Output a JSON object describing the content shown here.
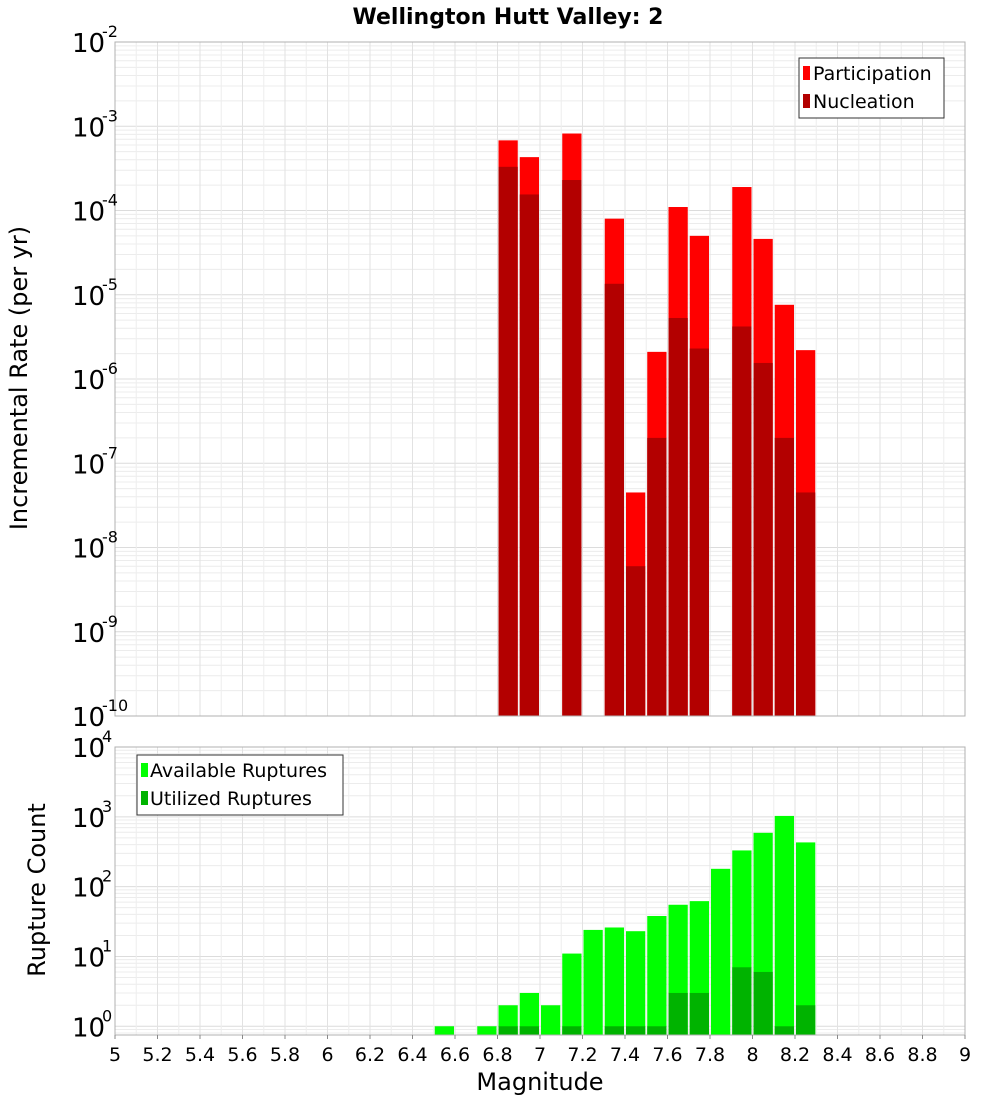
{
  "title": "Wellington Hutt Valley: 2",
  "chart_data": [
    {
      "type": "bar",
      "ylabel": "Incremental Rate (per yr)",
      "yscale": "log",
      "ylim": [
        1e-10,
        0.01
      ],
      "y_tick_exponents": [
        "-10",
        "-9",
        "-8",
        "-7",
        "-6",
        "-5",
        "-4",
        "-3",
        "-2"
      ],
      "y_tick_base": "10",
      "grid": true,
      "legend_position": "top-right",
      "colors": {
        "Participation": "#ff0000",
        "Nucleation": "#b30000"
      },
      "x": [
        6.85,
        6.95,
        7.15,
        7.35,
        7.45,
        7.55,
        7.65,
        7.75,
        7.95,
        8.05,
        8.15,
        8.25
      ],
      "series": [
        {
          "name": "Participation",
          "values": [
            0.00068,
            0.00043,
            0.00082,
            8e-05,
            4.5e-08,
            2.1e-06,
            0.00011,
            5e-05,
            0.00019,
            4.6e-05,
            7.6e-06,
            2.2e-06
          ]
        },
        {
          "name": "Nucleation",
          "values": [
            0.00033,
            0.000155,
            0.00023,
            1.35e-05,
            6e-09,
            2e-07,
            5.3e-06,
            2.3e-06,
            4.2e-06,
            1.55e-06,
            2e-07,
            4.5e-08
          ]
        }
      ]
    },
    {
      "type": "bar",
      "xlabel": "Magnitude",
      "ylabel": "Rupture Count",
      "yscale": "log",
      "ylim": [
        0.75,
        10000
      ],
      "y_tick_exponents": [
        "0",
        "1",
        "2",
        "3",
        "4"
      ],
      "y_tick_base": "10",
      "xlim": [
        5,
        9
      ],
      "x_ticks": [
        "5",
        "5.2",
        "5.4",
        "5.6",
        "5.8",
        "6",
        "6.2",
        "6.4",
        "6.6",
        "6.8",
        "7",
        "7.2",
        "7.4",
        "7.6",
        "7.8",
        "8",
        "8.2",
        "8.4",
        "8.6",
        "8.8",
        "9"
      ],
      "grid": true,
      "legend_position": "top-left",
      "colors": {
        "Available Ruptures": "#00ff00",
        "Utilized Ruptures": "#00b300"
      },
      "x": [
        6.55,
        6.75,
        6.85,
        6.95,
        7.05,
        7.15,
        7.25,
        7.35,
        7.45,
        7.55,
        7.65,
        7.75,
        7.85,
        7.95,
        8.05,
        8.15,
        8.25
      ],
      "series": [
        {
          "name": "Available Ruptures",
          "values": [
            1,
            1,
            2,
            3,
            2,
            11,
            24,
            26,
            23,
            38,
            55,
            62,
            180,
            330,
            590,
            1030,
            430
          ]
        },
        {
          "name": "Utilized Ruptures",
          "values": [
            0,
            0,
            1,
            1,
            0,
            1,
            0,
            1,
            1,
            1,
            3,
            3,
            0,
            7,
            6,
            1,
            2
          ]
        }
      ]
    }
  ]
}
